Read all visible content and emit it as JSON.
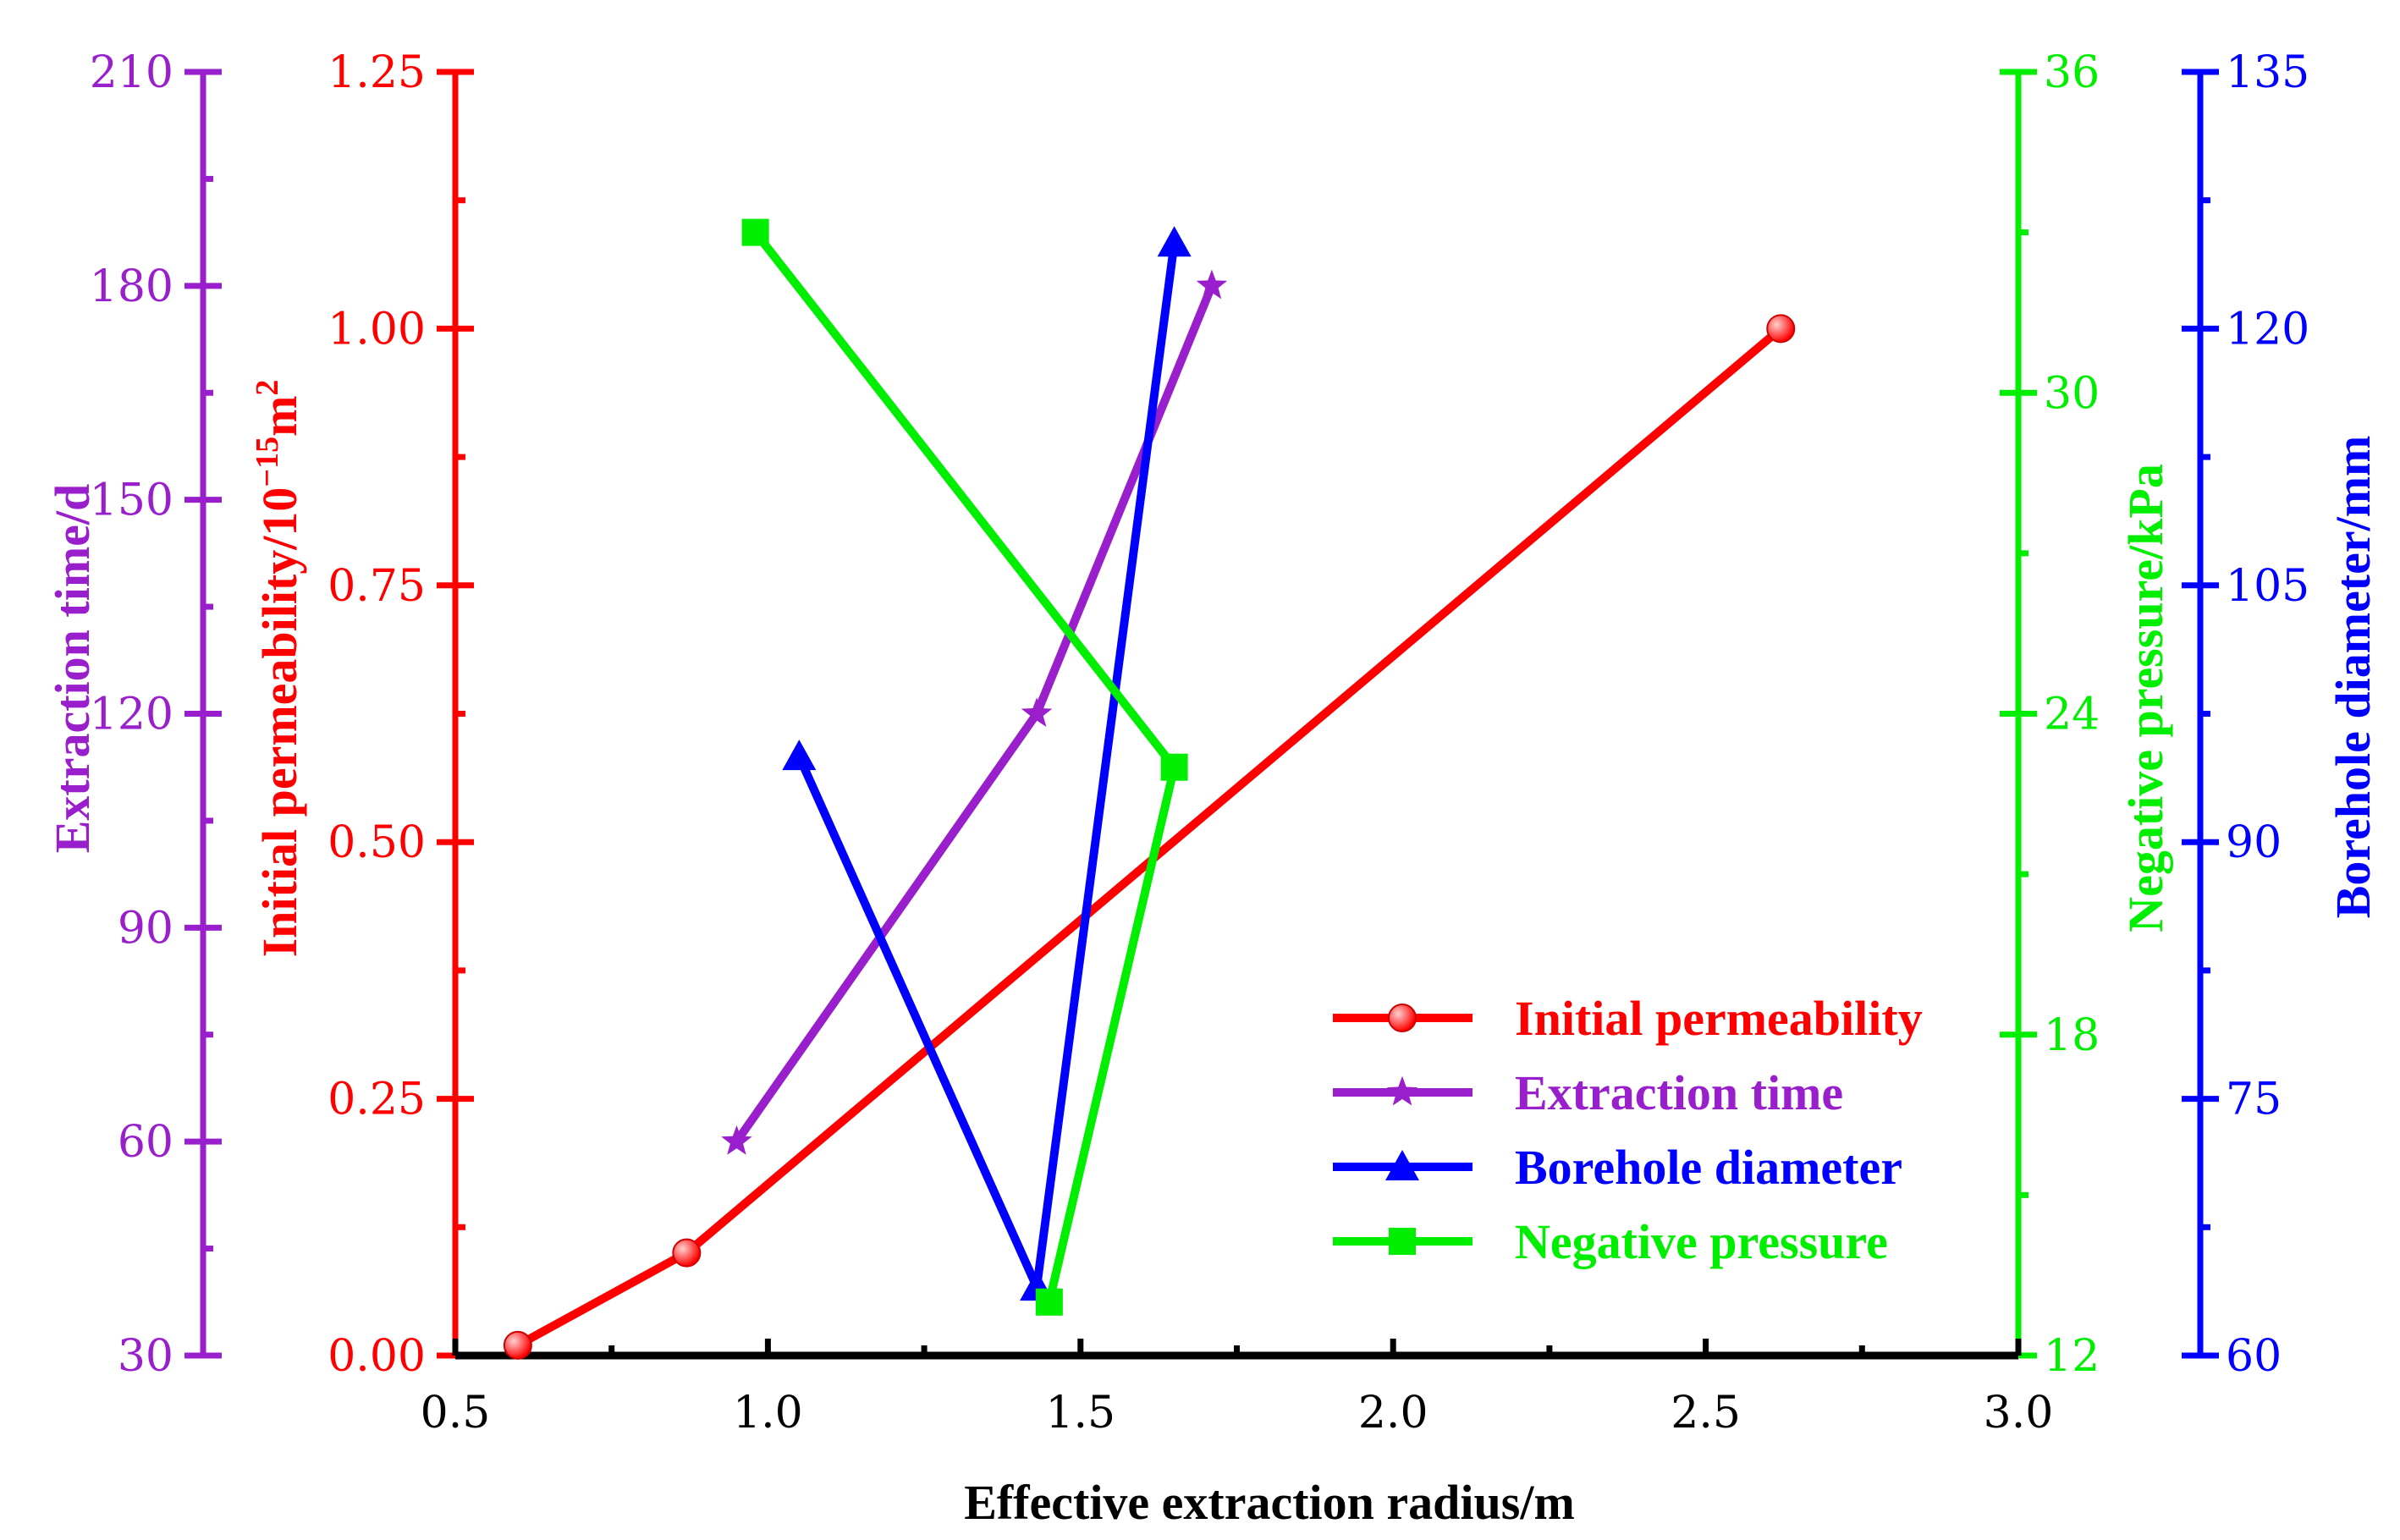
{
  "chart_data": {
    "type": "line",
    "xlabel": "Effective extraction radius/m",
    "x_range": [
      0.5,
      3.0
    ],
    "x_ticks": [
      "0.5",
      "1.0",
      "1.5",
      "2.0",
      "2.5",
      "3.0"
    ],
    "x_tick_values": [
      0.5,
      1.0,
      1.5,
      2.0,
      2.5,
      3.0
    ],
    "axes": [
      {
        "id": "time",
        "label": "Extraction time/d",
        "color": "#9a1fcc",
        "range": [
          30,
          210
        ],
        "ticks": [
          "30",
          "60",
          "90",
          "120",
          "150",
          "180",
          "210"
        ],
        "tick_values": [
          30,
          60,
          90,
          120,
          150,
          180,
          210
        ]
      },
      {
        "id": "perm",
        "label_main": "Initial permeability/10",
        "label_sup": "−15",
        "label_tail": "m",
        "label_sup2": "2",
        "color": "#ff0000",
        "range": [
          0,
          1.25
        ],
        "ticks": [
          "0.00",
          "0.25",
          "0.50",
          "0.75",
          "1.00",
          "1.25"
        ],
        "tick_values": [
          0,
          0.25,
          0.5,
          0.75,
          1.0,
          1.25
        ]
      },
      {
        "id": "pressure",
        "label": "Negative pressure/kPa",
        "color": "#00ee00",
        "range": [
          12,
          36
        ],
        "ticks": [
          "12",
          "18",
          "24",
          "30",
          "36"
        ],
        "tick_values": [
          12,
          18,
          24,
          30,
          36
        ]
      },
      {
        "id": "diameter",
        "label": "Borehole diameter/mm",
        "color": "#0000ff",
        "range": [
          60,
          135
        ],
        "ticks": [
          "60",
          "75",
          "90",
          "105",
          "120",
          "135"
        ],
        "tick_values": [
          60,
          75,
          90,
          105,
          120,
          135
        ]
      }
    ],
    "series": [
      {
        "name": "Initial permeability",
        "axis": "perm",
        "marker": "circle",
        "color": "#ff0000",
        "x": [
          0.6,
          0.87,
          2.62
        ],
        "y": [
          0.01,
          0.1,
          1.0
        ]
      },
      {
        "name": "Extraction time",
        "axis": "time",
        "marker": "star",
        "color": "#9a1fcc",
        "x": [
          0.95,
          1.43,
          1.71
        ],
        "y": [
          60,
          120,
          180
        ]
      },
      {
        "name": "Borehole diameter",
        "axis": "diameter",
        "marker": "triangle",
        "color": "#0000ff",
        "x": [
          1.05,
          1.43,
          1.65
        ],
        "y": [
          95,
          64,
          125
        ]
      },
      {
        "name": "Negative pressure",
        "axis": "pressure",
        "marker": "square",
        "color": "#00ee00",
        "x": [
          0.98,
          1.65,
          1.45
        ],
        "y": [
          33,
          23,
          13
        ]
      }
    ],
    "legend_position": "bottom-right"
  }
}
